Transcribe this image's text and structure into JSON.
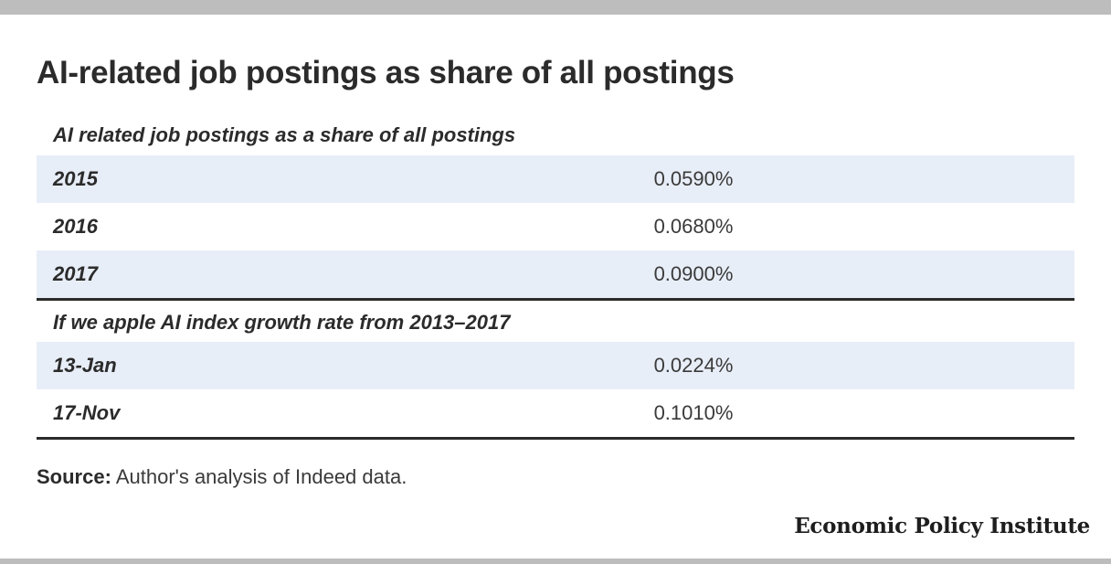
{
  "title": "AI-related job postings as share of all postings",
  "table": {
    "sections": [
      {
        "header": "AI related job postings as a share of all postings",
        "rows": [
          {
            "label": "2015",
            "value": "0.0590%"
          },
          {
            "label": "2016",
            "value": "0.0680%"
          },
          {
            "label": "2017",
            "value": "0.0900%"
          }
        ]
      },
      {
        "header": "If we apple AI index growth rate from 2013–2017",
        "rows": [
          {
            "label": "13-Jan",
            "value": "0.0224%"
          },
          {
            "label": "17-Nov",
            "value": "0.1010%"
          }
        ]
      }
    ]
  },
  "source": {
    "label": "Source:",
    "text": " Author's analysis of Indeed data."
  },
  "brand": "Economic Policy Institute",
  "colors": {
    "frame_bar": "#bdbdbd",
    "row_shade": "#e8eef8",
    "text": "#2b2b2b",
    "rule": "#2b2b2b"
  }
}
